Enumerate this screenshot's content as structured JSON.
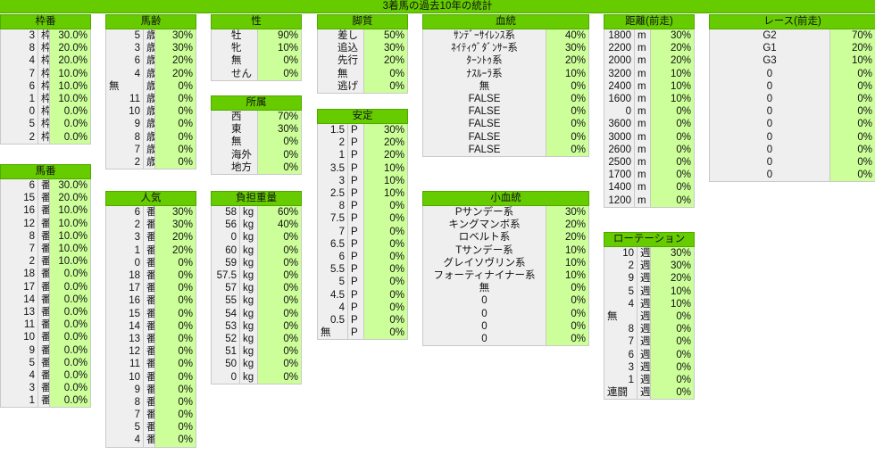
{
  "title": "3着馬の過去10年の統計",
  "sections": {
    "wakuban": {
      "header": "枠番",
      "rows": [
        [
          "3",
          "枠",
          "30.0%"
        ],
        [
          "8",
          "枠",
          "20.0%"
        ],
        [
          "4",
          "枠",
          "20.0%"
        ],
        [
          "7",
          "枠",
          "10.0%"
        ],
        [
          "6",
          "枠",
          "10.0%"
        ],
        [
          "1",
          "枠",
          "10.0%"
        ],
        [
          "0",
          "枠",
          "0.0%"
        ],
        [
          "5",
          "枠",
          "0.0%"
        ],
        [
          "2",
          "枠",
          "0.0%"
        ]
      ]
    },
    "umaban": {
      "header": "馬番",
      "rows": [
        [
          "6",
          "番",
          "30.0%"
        ],
        [
          "15",
          "番",
          "20.0%"
        ],
        [
          "16",
          "番",
          "10.0%"
        ],
        [
          "12",
          "番",
          "10.0%"
        ],
        [
          "8",
          "番",
          "10.0%"
        ],
        [
          "7",
          "番",
          "10.0%"
        ],
        [
          "2",
          "番",
          "10.0%"
        ],
        [
          "18",
          "番",
          "0.0%"
        ],
        [
          "17",
          "番",
          "0.0%"
        ],
        [
          "14",
          "番",
          "0.0%"
        ],
        [
          "13",
          "番",
          "0.0%"
        ],
        [
          "11",
          "番",
          "0.0%"
        ],
        [
          "10",
          "番",
          "0.0%"
        ],
        [
          "9",
          "番",
          "0.0%"
        ],
        [
          "5",
          "番",
          "0.0%"
        ],
        [
          "4",
          "番",
          "0.0%"
        ],
        [
          "3",
          "番",
          "0.0%"
        ],
        [
          "1",
          "番",
          "0.0%"
        ]
      ]
    },
    "barei": {
      "header": "馬齢",
      "rows": [
        [
          "5",
          "歳",
          "30%"
        ],
        [
          "3",
          "歳",
          "30%"
        ],
        [
          "6",
          "歳",
          "20%"
        ],
        [
          "4",
          "歳",
          "20%"
        ],
        [
          "無",
          "歳",
          "0%"
        ],
        [
          "11",
          "歳",
          "0%"
        ],
        [
          "10",
          "歳",
          "0%"
        ],
        [
          "9",
          "歳",
          "0%"
        ],
        [
          "8",
          "歳",
          "0%"
        ],
        [
          "7",
          "歳",
          "0%"
        ],
        [
          "2",
          "歳",
          "0%"
        ]
      ]
    },
    "ninki": {
      "header": "人気",
      "rows": [
        [
          "6",
          "番",
          "30%"
        ],
        [
          "2",
          "番",
          "30%"
        ],
        [
          "3",
          "番",
          "20%"
        ],
        [
          "1",
          "番",
          "20%"
        ],
        [
          "0",
          "番",
          "0%"
        ],
        [
          "18",
          "番",
          "0%"
        ],
        [
          "17",
          "番",
          "0%"
        ],
        [
          "16",
          "番",
          "0%"
        ],
        [
          "15",
          "番",
          "0%"
        ],
        [
          "14",
          "番",
          "0%"
        ],
        [
          "13",
          "番",
          "0%"
        ],
        [
          "12",
          "番",
          "0%"
        ],
        [
          "11",
          "番",
          "0%"
        ],
        [
          "10",
          "番",
          "0%"
        ],
        [
          "9",
          "番",
          "0%"
        ],
        [
          "8",
          "番",
          "0%"
        ],
        [
          "7",
          "番",
          "0%"
        ],
        [
          "5",
          "番",
          "0%"
        ],
        [
          "4",
          "番",
          "0%"
        ]
      ]
    },
    "sei": {
      "header": "性",
      "rows": [
        [
          "牡",
          "90%"
        ],
        [
          "牝",
          "10%"
        ],
        [
          "無",
          "0%"
        ],
        [
          "せん",
          "0%"
        ]
      ]
    },
    "shozoku": {
      "header": "所属",
      "rows": [
        [
          "西",
          "70%"
        ],
        [
          "東",
          "30%"
        ],
        [
          "無",
          "0%"
        ],
        [
          "海外",
          "0%"
        ],
        [
          "地方",
          "0%"
        ]
      ]
    },
    "futan": {
      "header": "負担重量",
      "rows": [
        [
          "58",
          "kg",
          "60%"
        ],
        [
          "56",
          "kg",
          "40%"
        ],
        [
          "0",
          "kg",
          "0%"
        ],
        [
          "60",
          "kg",
          "0%"
        ],
        [
          "59",
          "kg",
          "0%"
        ],
        [
          "57.5",
          "kg",
          "0%"
        ],
        [
          "57",
          "kg",
          "0%"
        ],
        [
          "55",
          "kg",
          "0%"
        ],
        [
          "54",
          "kg",
          "0%"
        ],
        [
          "53",
          "kg",
          "0%"
        ],
        [
          "52",
          "kg",
          "0%"
        ],
        [
          "51",
          "kg",
          "0%"
        ],
        [
          "50",
          "kg",
          "0%"
        ],
        [
          "0",
          "kg",
          "0%"
        ]
      ]
    },
    "kyakushitsu": {
      "header": "脚質",
      "rows": [
        [
          "差し",
          "50%"
        ],
        [
          "追込",
          "30%"
        ],
        [
          "先行",
          "20%"
        ],
        [
          "無",
          "0%"
        ],
        [
          "逃げ",
          "0%"
        ]
      ]
    },
    "antei": {
      "header": "安定",
      "rows": [
        [
          "1.5",
          "P",
          "30%"
        ],
        [
          "2",
          "P",
          "20%"
        ],
        [
          "1",
          "P",
          "20%"
        ],
        [
          "3.5",
          "P",
          "10%"
        ],
        [
          "3",
          "P",
          "10%"
        ],
        [
          "2.5",
          "P",
          "10%"
        ],
        [
          "8",
          "P",
          "0%"
        ],
        [
          "7.5",
          "P",
          "0%"
        ],
        [
          "7",
          "P",
          "0%"
        ],
        [
          "6.5",
          "P",
          "0%"
        ],
        [
          "6",
          "P",
          "0%"
        ],
        [
          "5.5",
          "P",
          "0%"
        ],
        [
          "5",
          "P",
          "0%"
        ],
        [
          "4.5",
          "P",
          "0%"
        ],
        [
          "4",
          "P",
          "0%"
        ],
        [
          "0.5",
          "P",
          "0%"
        ],
        [
          "無",
          "P",
          "0%"
        ]
      ]
    },
    "kettou": {
      "header": "血統",
      "rows": [
        [
          "ｻﾝﾃﾞｰｻｲﾚﾝｽ系",
          "40%"
        ],
        [
          "ﾈｲﾃｨｳﾞﾀﾞﾝｻｰ系",
          "30%"
        ],
        [
          "ﾀｰﾝﾄｩ系",
          "20%"
        ],
        [
          "ﾅｽﾙｰﾗ系",
          "10%"
        ],
        [
          "無",
          "0%"
        ],
        [
          "FALSE",
          "0%"
        ],
        [
          "FALSE",
          "0%"
        ],
        [
          "FALSE",
          "0%"
        ],
        [
          "FALSE",
          "0%"
        ],
        [
          "FALSE",
          "0%"
        ]
      ]
    },
    "shoketto": {
      "header": "小血統",
      "rows": [
        [
          "Pサンデー系",
          "30%"
        ],
        [
          "キングマンボ系",
          "20%"
        ],
        [
          "ロベルト系",
          "20%"
        ],
        [
          "Tサンデー系",
          "10%"
        ],
        [
          "グレイソヴリン系",
          "10%"
        ],
        [
          "フォーティナイナー系",
          "10%"
        ],
        [
          "無",
          "0%"
        ],
        [
          "0",
          "0%"
        ],
        [
          "0",
          "0%"
        ],
        [
          "0",
          "0%"
        ],
        [
          "0",
          "0%"
        ]
      ]
    },
    "kyori": {
      "header": "距離(前走)",
      "rows": [
        [
          "1800",
          "m",
          "30%"
        ],
        [
          "2200",
          "m",
          "20%"
        ],
        [
          "2000",
          "m",
          "20%"
        ],
        [
          "3200",
          "m",
          "10%"
        ],
        [
          "2400",
          "m",
          "10%"
        ],
        [
          "1600",
          "m",
          "10%"
        ],
        [
          "0",
          "m",
          "0%"
        ],
        [
          "3600",
          "m",
          "0%"
        ],
        [
          "3000",
          "m",
          "0%"
        ],
        [
          "2600",
          "m",
          "0%"
        ],
        [
          "2500",
          "m",
          "0%"
        ],
        [
          "1700",
          "m",
          "0%"
        ],
        [
          "1400",
          "m",
          "0%"
        ],
        [
          "1200",
          "m",
          "0%"
        ]
      ]
    },
    "rotation": {
      "header": "ローテーション",
      "rows": [
        [
          "10",
          "週",
          "30%"
        ],
        [
          "2",
          "週",
          "30%"
        ],
        [
          "9",
          "週",
          "20%"
        ],
        [
          "5",
          "週",
          "10%"
        ],
        [
          "4",
          "週",
          "10%"
        ],
        [
          "無",
          "週",
          "0%"
        ],
        [
          "8",
          "週",
          "0%"
        ],
        [
          "7",
          "週",
          "0%"
        ],
        [
          "6",
          "週",
          "0%"
        ],
        [
          "3",
          "週",
          "0%"
        ],
        [
          "1",
          "週",
          "0%"
        ],
        [
          "連闘",
          "週",
          "0%"
        ]
      ]
    },
    "race": {
      "header": "レース(前走)",
      "rows": [
        [
          "G2",
          "70%"
        ],
        [
          "G1",
          "20%"
        ],
        [
          "G3",
          "10%"
        ],
        [
          "0",
          "0%"
        ],
        [
          "0",
          "0%"
        ],
        [
          "0",
          "0%"
        ],
        [
          "0",
          "0%"
        ],
        [
          "0",
          "0%"
        ],
        [
          "0",
          "0%"
        ],
        [
          "0",
          "0%"
        ],
        [
          "0",
          "0%"
        ],
        [
          "0",
          "0%"
        ]
      ]
    }
  },
  "colors": {
    "header": "#66cc00",
    "value": "#ccff99",
    "label": "#efefef"
  }
}
